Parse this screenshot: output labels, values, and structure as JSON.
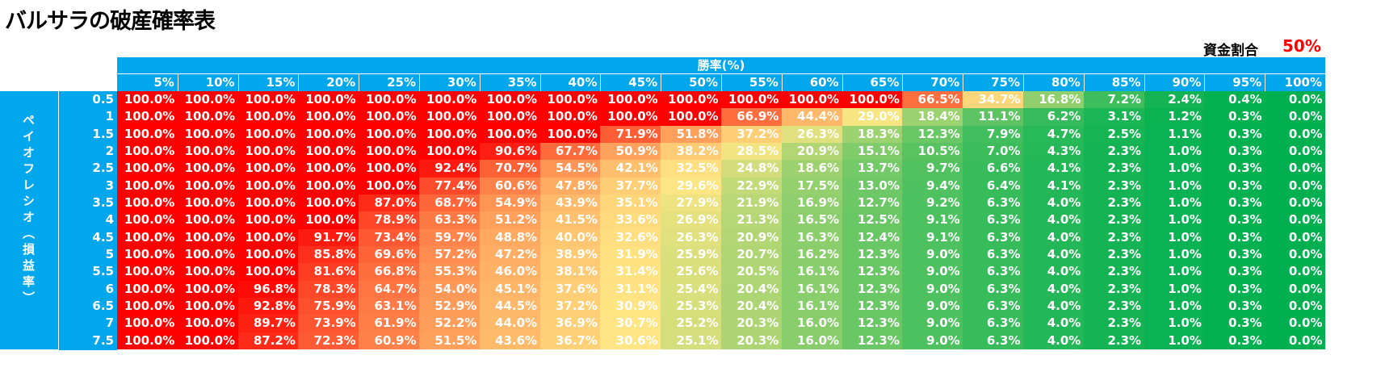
{
  "title": "バルサラの破産確率表",
  "fund_ratio": {
    "label": "資金割合",
    "value": "50%"
  },
  "header": {
    "win_rate_label": "勝率(%)"
  },
  "side_label": "ペイオフレシオ（損益率）",
  "columns": [
    "5%",
    "10%",
    "15%",
    "20%",
    "25%",
    "30%",
    "35%",
    "40%",
    "45%",
    "50%",
    "55%",
    "60%",
    "65%",
    "70%",
    "75%",
    "80%",
    "85%",
    "90%",
    "95%",
    "100%"
  ],
  "rows": [
    {
      "ratio": "0.5",
      "values": [
        "100.0%",
        "100.0%",
        "100.0%",
        "100.0%",
        "100.0%",
        "100.0%",
        "100.0%",
        "100.0%",
        "100.0%",
        "100.0%",
        "100.0%",
        "100.0%",
        "100.0%",
        "66.5%",
        "34.7%",
        "16.8%",
        "7.2%",
        "2.4%",
        "0.4%",
        "0.0%"
      ]
    },
    {
      "ratio": "1",
      "values": [
        "100.0%",
        "100.0%",
        "100.0%",
        "100.0%",
        "100.0%",
        "100.0%",
        "100.0%",
        "100.0%",
        "100.0%",
        "100.0%",
        "66.9%",
        "44.4%",
        "29.0%",
        "18.4%",
        "11.1%",
        "6.2%",
        "3.1%",
        "1.2%",
        "0.3%",
        "0.0%"
      ]
    },
    {
      "ratio": "1.5",
      "values": [
        "100.0%",
        "100.0%",
        "100.0%",
        "100.0%",
        "100.0%",
        "100.0%",
        "100.0%",
        "100.0%",
        "71.9%",
        "51.8%",
        "37.2%",
        "26.3%",
        "18.3%",
        "12.3%",
        "7.9%",
        "4.7%",
        "2.5%",
        "1.1%",
        "0.3%",
        "0.0%"
      ]
    },
    {
      "ratio": "2",
      "values": [
        "100.0%",
        "100.0%",
        "100.0%",
        "100.0%",
        "100.0%",
        "100.0%",
        "90.6%",
        "67.7%",
        "50.9%",
        "38.2%",
        "28.5%",
        "20.9%",
        "15.1%",
        "10.5%",
        "7.0%",
        "4.3%",
        "2.3%",
        "1.0%",
        "0.3%",
        "0.0%"
      ]
    },
    {
      "ratio": "2.5",
      "values": [
        "100.0%",
        "100.0%",
        "100.0%",
        "100.0%",
        "100.0%",
        "92.4%",
        "70.7%",
        "54.5%",
        "42.1%",
        "32.5%",
        "24.8%",
        "18.6%",
        "13.7%",
        "9.7%",
        "6.6%",
        "4.1%",
        "2.3%",
        "1.0%",
        "0.3%",
        "0.0%"
      ]
    },
    {
      "ratio": "3",
      "values": [
        "100.0%",
        "100.0%",
        "100.0%",
        "100.0%",
        "100.0%",
        "77.4%",
        "60.6%",
        "47.8%",
        "37.7%",
        "29.6%",
        "22.9%",
        "17.5%",
        "13.0%",
        "9.4%",
        "6.4%",
        "4.1%",
        "2.3%",
        "1.0%",
        "0.3%",
        "0.0%"
      ]
    },
    {
      "ratio": "3.5",
      "values": [
        "100.0%",
        "100.0%",
        "100.0%",
        "100.0%",
        "87.0%",
        "68.7%",
        "54.9%",
        "43.9%",
        "35.1%",
        "27.9%",
        "21.9%",
        "16.9%",
        "12.7%",
        "9.2%",
        "6.3%",
        "4.0%",
        "2.3%",
        "1.0%",
        "0.3%",
        "0.0%"
      ]
    },
    {
      "ratio": "4",
      "values": [
        "100.0%",
        "100.0%",
        "100.0%",
        "100.0%",
        "78.9%",
        "63.3%",
        "51.2%",
        "41.5%",
        "33.6%",
        "26.9%",
        "21.3%",
        "16.5%",
        "12.5%",
        "9.1%",
        "6.3%",
        "4.0%",
        "2.3%",
        "1.0%",
        "0.3%",
        "0.0%"
      ]
    },
    {
      "ratio": "4.5",
      "values": [
        "100.0%",
        "100.0%",
        "100.0%",
        "91.7%",
        "73.4%",
        "59.7%",
        "48.8%",
        "40.0%",
        "32.6%",
        "26.3%",
        "20.9%",
        "16.3%",
        "12.4%",
        "9.1%",
        "6.3%",
        "4.0%",
        "2.3%",
        "1.0%",
        "0.3%",
        "0.0%"
      ]
    },
    {
      "ratio": "5",
      "values": [
        "100.0%",
        "100.0%",
        "100.0%",
        "85.8%",
        "69.6%",
        "57.2%",
        "47.2%",
        "38.9%",
        "31.9%",
        "25.9%",
        "20.7%",
        "16.2%",
        "12.3%",
        "9.0%",
        "6.3%",
        "4.0%",
        "2.3%",
        "1.0%",
        "0.3%",
        "0.0%"
      ]
    },
    {
      "ratio": "5.5",
      "values": [
        "100.0%",
        "100.0%",
        "100.0%",
        "81.6%",
        "66.8%",
        "55.3%",
        "46.0%",
        "38.1%",
        "31.4%",
        "25.6%",
        "20.5%",
        "16.1%",
        "12.3%",
        "9.0%",
        "6.3%",
        "4.0%",
        "2.3%",
        "1.0%",
        "0.3%",
        "0.0%"
      ]
    },
    {
      "ratio": "6",
      "values": [
        "100.0%",
        "100.0%",
        "96.8%",
        "78.3%",
        "64.7%",
        "54.0%",
        "45.1%",
        "37.6%",
        "31.1%",
        "25.4%",
        "20.4%",
        "16.1%",
        "12.3%",
        "9.0%",
        "6.3%",
        "4.0%",
        "2.3%",
        "1.0%",
        "0.3%",
        "0.0%"
      ]
    },
    {
      "ratio": "6.5",
      "values": [
        "100.0%",
        "100.0%",
        "92.8%",
        "75.9%",
        "63.1%",
        "52.9%",
        "44.5%",
        "37.2%",
        "30.9%",
        "25.3%",
        "20.4%",
        "16.1%",
        "12.3%",
        "9.0%",
        "6.3%",
        "4.0%",
        "2.3%",
        "1.0%",
        "0.3%",
        "0.0%"
      ]
    },
    {
      "ratio": "7",
      "values": [
        "100.0%",
        "100.0%",
        "89.7%",
        "73.9%",
        "61.9%",
        "52.2%",
        "44.0%",
        "36.9%",
        "30.7%",
        "25.2%",
        "20.3%",
        "16.0%",
        "12.3%",
        "9.0%",
        "6.3%",
        "4.0%",
        "2.3%",
        "1.0%",
        "0.3%",
        "0.0%"
      ]
    },
    {
      "ratio": "7.5",
      "values": [
        "100.0%",
        "100.0%",
        "87.2%",
        "72.3%",
        "60.9%",
        "51.5%",
        "43.6%",
        "36.7%",
        "30.6%",
        "25.1%",
        "20.3%",
        "16.0%",
        "12.3%",
        "9.0%",
        "6.3%",
        "4.0%",
        "2.3%",
        "1.0%",
        "0.3%",
        "0.0%"
      ]
    }
  ],
  "colors": {
    "header": "#00a7ec",
    "high": "#ff0000",
    "mid": "#ffe784",
    "low": "#00b050",
    "fund_value": "#ff0000"
  }
}
